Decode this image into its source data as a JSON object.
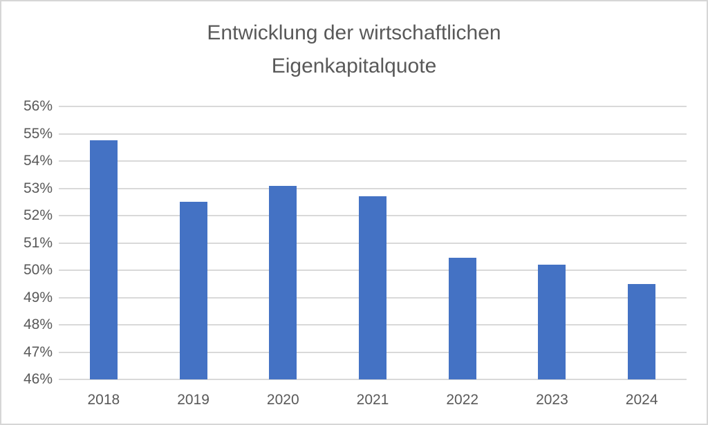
{
  "chart": {
    "title": "Entwicklung der wirtschaftlichen Eigenkapitalquote"
  },
  "chart_data": {
    "type": "bar",
    "title": "Entwicklung der wirtschaftlichen Eigenkapitalquote",
    "categories": [
      "2018",
      "2019",
      "2020",
      "2021",
      "2022",
      "2023",
      "2024"
    ],
    "values": [
      54.75,
      52.5,
      53.1,
      52.7,
      50.45,
      50.2,
      49.5
    ],
    "unit": "%",
    "xlabel": "",
    "ylabel": "",
    "ylim": [
      46,
      56
    ],
    "ytick_step": 1,
    "ytick_labels": [
      "46%",
      "47%",
      "48%",
      "49%",
      "50%",
      "51%",
      "52%",
      "53%",
      "54%",
      "55%",
      "56%"
    ],
    "grid": true,
    "legend": false,
    "colors": {
      "bar": "#4472C4",
      "gridline": "#D9D9D9",
      "text": "#595959",
      "frame_border": "#D6D6D6",
      "background": "#FFFFFF"
    }
  }
}
